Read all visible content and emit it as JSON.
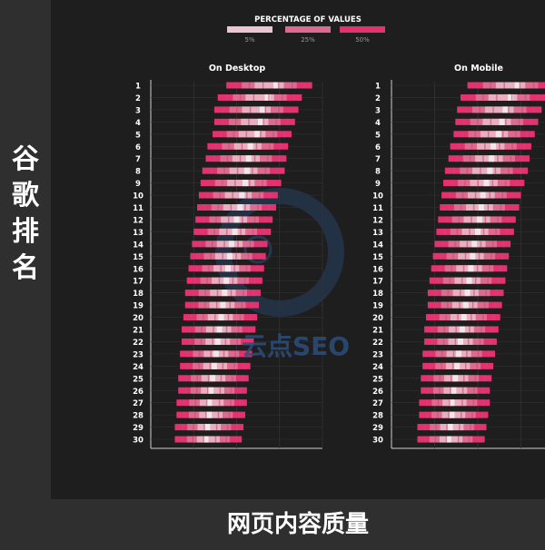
{
  "sidebar": {
    "label": "谷\n歌\n排\n名"
  },
  "footer": {
    "label": "网页内容质量"
  },
  "watermark": {
    "text": "云点SEO"
  },
  "chart_data": {
    "type": "heatmap",
    "title": "",
    "legend": {
      "title": "PERCENTAGE OF VALUES",
      "items": [
        {
          "label": "5%",
          "color": "#e9c7d0"
        },
        {
          "label": "25%",
          "color": "#dd6a8f"
        },
        {
          "label": "50%",
          "color": "#e3326f"
        }
      ]
    },
    "colors": {
      "light": "#e9c7d0",
      "mid": "#dd6a8f",
      "dark": "#e3326f",
      "center": "#f3e6ea"
    },
    "ranks": [
      1,
      2,
      3,
      4,
      5,
      6,
      7,
      8,
      9,
      10,
      11,
      12,
      13,
      14,
      15,
      16,
      17,
      18,
      19,
      20,
      21,
      22,
      23,
      24,
      25,
      26,
      27,
      28,
      29,
      30
    ],
    "panels": [
      {
        "name": "On Desktop",
        "rows": [
          [
            0.44,
            0.94,
            0.73
          ],
          [
            0.39,
            0.88,
            0.68
          ],
          [
            0.37,
            0.86,
            0.65
          ],
          [
            0.37,
            0.84,
            0.64
          ],
          [
            0.36,
            0.82,
            0.62
          ],
          [
            0.33,
            0.8,
            0.58
          ],
          [
            0.32,
            0.79,
            0.57
          ],
          [
            0.3,
            0.78,
            0.56
          ],
          [
            0.29,
            0.76,
            0.55
          ],
          [
            0.28,
            0.74,
            0.53
          ],
          [
            0.27,
            0.73,
            0.52
          ],
          [
            0.26,
            0.71,
            0.5
          ],
          [
            0.25,
            0.7,
            0.49
          ],
          [
            0.24,
            0.68,
            0.47
          ],
          [
            0.23,
            0.67,
            0.46
          ],
          [
            0.22,
            0.66,
            0.45
          ],
          [
            0.21,
            0.65,
            0.44
          ],
          [
            0.2,
            0.64,
            0.43
          ],
          [
            0.2,
            0.63,
            0.42
          ],
          [
            0.19,
            0.62,
            0.41
          ],
          [
            0.18,
            0.61,
            0.4
          ],
          [
            0.18,
            0.6,
            0.39
          ],
          [
            0.17,
            0.59,
            0.38
          ],
          [
            0.17,
            0.58,
            0.37
          ],
          [
            0.16,
            0.57,
            0.36
          ],
          [
            0.16,
            0.56,
            0.35
          ],
          [
            0.15,
            0.56,
            0.34
          ],
          [
            0.15,
            0.55,
            0.34
          ],
          [
            0.14,
            0.54,
            0.33
          ],
          [
            0.14,
            0.53,
            0.32
          ]
        ]
      },
      {
        "name": "On Mobile",
        "rows": [
          [
            0.44,
            0.94,
            0.73
          ],
          [
            0.4,
            0.89,
            0.69
          ],
          [
            0.38,
            0.87,
            0.66
          ],
          [
            0.37,
            0.85,
            0.64
          ],
          [
            0.36,
            0.83,
            0.62
          ],
          [
            0.34,
            0.81,
            0.59
          ],
          [
            0.33,
            0.8,
            0.58
          ],
          [
            0.31,
            0.79,
            0.57
          ],
          [
            0.3,
            0.77,
            0.55
          ],
          [
            0.29,
            0.75,
            0.53
          ],
          [
            0.28,
            0.74,
            0.52
          ],
          [
            0.27,
            0.72,
            0.51
          ],
          [
            0.26,
            0.71,
            0.5
          ],
          [
            0.25,
            0.69,
            0.48
          ],
          [
            0.24,
            0.68,
            0.47
          ],
          [
            0.23,
            0.67,
            0.46
          ],
          [
            0.22,
            0.66,
            0.45
          ],
          [
            0.21,
            0.65,
            0.44
          ],
          [
            0.21,
            0.64,
            0.43
          ],
          [
            0.2,
            0.63,
            0.42
          ],
          [
            0.19,
            0.62,
            0.41
          ],
          [
            0.19,
            0.61,
            0.4
          ],
          [
            0.18,
            0.6,
            0.39
          ],
          [
            0.18,
            0.59,
            0.38
          ],
          [
            0.17,
            0.58,
            0.37
          ],
          [
            0.17,
            0.57,
            0.36
          ],
          [
            0.16,
            0.57,
            0.35
          ],
          [
            0.16,
            0.56,
            0.35
          ],
          [
            0.15,
            0.55,
            0.34
          ],
          [
            0.15,
            0.54,
            0.33
          ]
        ]
      }
    ],
    "grid": true
  }
}
